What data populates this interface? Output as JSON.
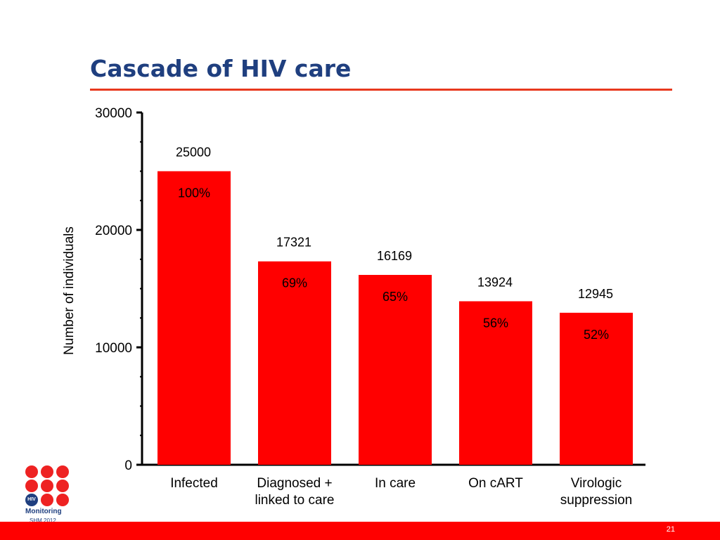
{
  "slide": {
    "title": "Cascade of HIV care",
    "page_number": "21"
  },
  "logo": {
    "badge": "HIV",
    "brand": "Monitoring",
    "sub": "SHM 2012"
  },
  "colors": {
    "title": "#1f3f7f",
    "rule": "#e8391e",
    "bar": "#ff0000",
    "footer": "#ff0000"
  },
  "chart_data": {
    "type": "bar",
    "title": "",
    "xlabel": "",
    "ylabel": "Number of individuals",
    "ylim": [
      0,
      30000
    ],
    "yticks": [
      0,
      10000,
      20000,
      30000
    ],
    "grid": false,
    "categories": [
      [
        "Infected"
      ],
      [
        "Diagnosed +",
        "linked to care"
      ],
      [
        "In care"
      ],
      [
        "On cART"
      ],
      [
        "Virologic",
        "suppression"
      ]
    ],
    "values": [
      25000,
      17321,
      16169,
      13924,
      12945
    ],
    "percent_labels": [
      "100%",
      "69%",
      "65%",
      "56%",
      "52%"
    ]
  }
}
